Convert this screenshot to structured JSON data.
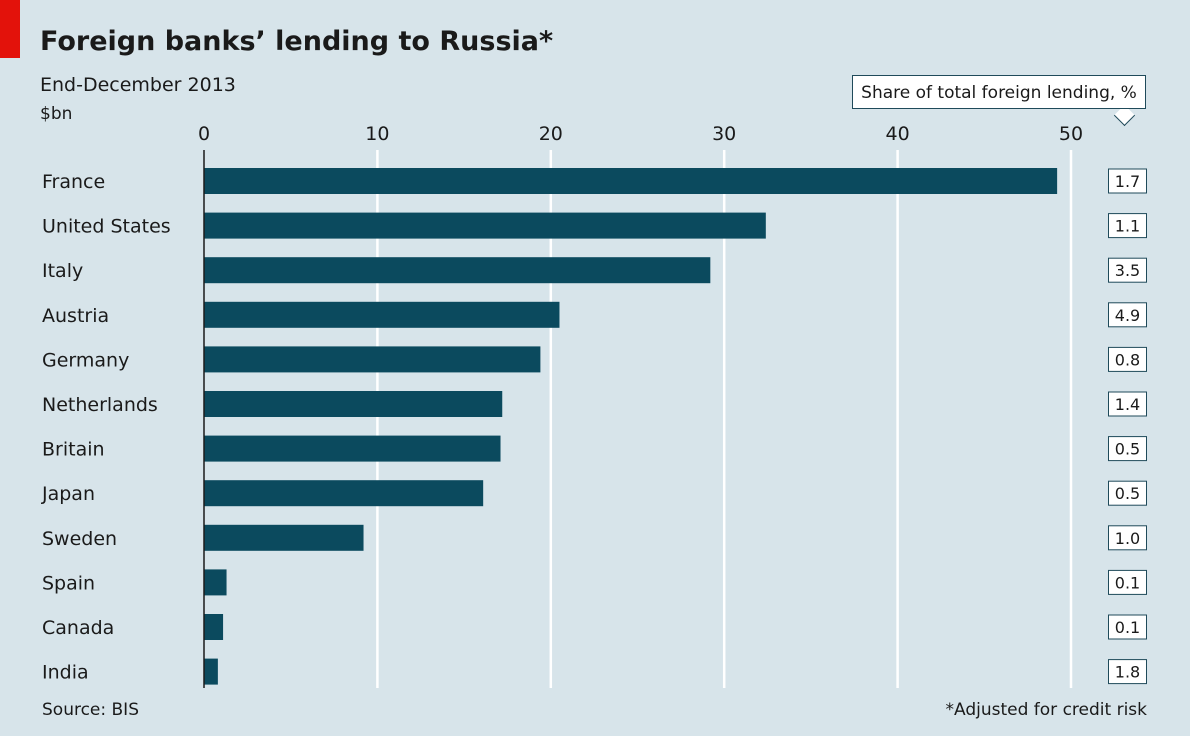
{
  "chart_data": {
    "type": "bar",
    "orientation": "horizontal",
    "title": "Foreign banks’ lending to Russia*",
    "subtitle": "End-December 2013",
    "ylabel": "$bn",
    "xlim": [
      0,
      50
    ],
    "xticks": [
      0,
      10,
      20,
      30,
      40,
      50
    ],
    "categories": [
      "France",
      "United States",
      "Italy",
      "Austria",
      "Germany",
      "Netherlands",
      "Britain",
      "Japan",
      "Sweden",
      "Spain",
      "Canada",
      "India"
    ],
    "values": [
      49.2,
      32.4,
      29.2,
      20.5,
      19.4,
      17.2,
      17.1,
      16.1,
      9.2,
      1.3,
      1.1,
      0.8
    ],
    "share_label": "Share of total foreign lending, %",
    "share": [
      "1.7",
      "1.1",
      "3.5",
      "4.9",
      "0.8",
      "1.4",
      "0.5",
      "0.5",
      "1.0",
      "0.1",
      "0.1",
      "1.8"
    ],
    "source": "Source: BIS",
    "note": "*Adjusted for credit risk",
    "grid": true,
    "colors": {
      "bar": "#0b4a5e",
      "background": "#d7e4ea",
      "accent": "#e3120b"
    }
  }
}
